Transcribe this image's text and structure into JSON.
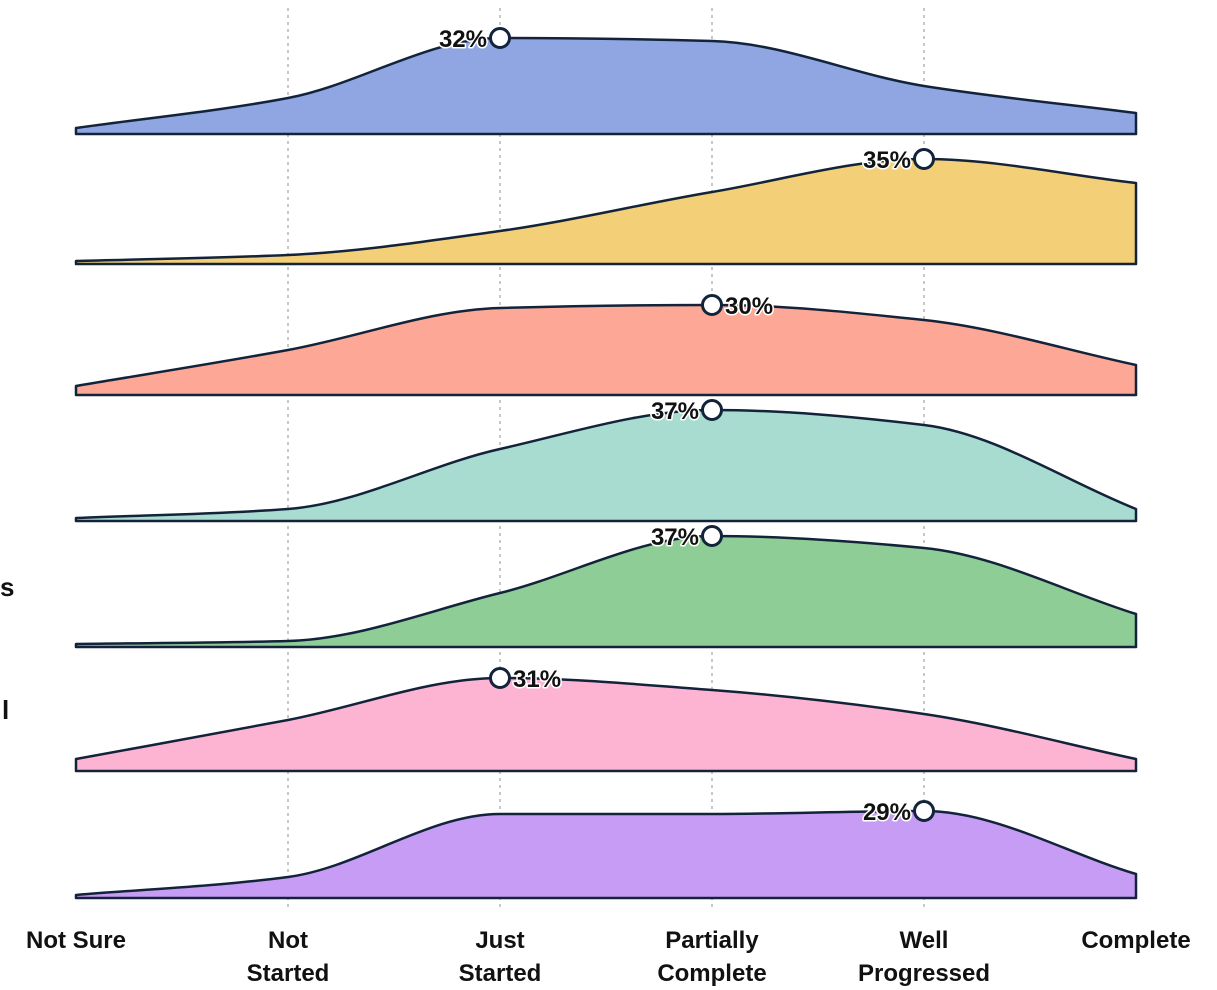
{
  "chart_data": {
    "type": "area",
    "subtype": "ridgeline",
    "categories": [
      "Not Sure",
      "Not Started",
      "Just Started",
      "Partially Complete",
      "Well Progressed",
      "Complete"
    ],
    "category_labels": [
      [
        "Not Sure"
      ],
      [
        "Not",
        "Started"
      ],
      [
        "Just",
        "Started"
      ],
      [
        "Partially",
        "Complete"
      ],
      [
        "Well",
        "Progressed"
      ],
      [
        "Complete"
      ]
    ],
    "series": [
      {
        "color": "#8fa6e2",
        "values": [
          2,
          12,
          32,
          31,
          16,
          7
        ],
        "peak_label": "32%",
        "peak_index": 2
      },
      {
        "color": "#f3cf78",
        "values": [
          1,
          3,
          11,
          24,
          35,
          27
        ],
        "peak_label": "35%",
        "peak_index": 4
      },
      {
        "color": "#fda796",
        "values": [
          3,
          15,
          29,
          30,
          25,
          10
        ],
        "peak_label": "30%",
        "peak_index": 3
      },
      {
        "color": "#a8dcd1",
        "values": [
          1,
          4,
          24,
          37,
          32,
          4
        ],
        "peak_label": "37%",
        "peak_index": 3
      },
      {
        "color": "#8ecd96",
        "values": [
          1,
          2,
          18,
          37,
          33,
          11
        ],
        "peak_label": "37%",
        "peak_index": 3
      },
      {
        "color": "#fdb4d3",
        "values": [
          4,
          17,
          31,
          27,
          19,
          4
        ],
        "peak_label": "31%",
        "peak_index": 2
      },
      {
        "color": "#c79cf4",
        "values": [
          1,
          7,
          28,
          28,
          29,
          8
        ],
        "peak_label": "29%",
        "peak_index": 4
      }
    ],
    "ylim": [
      0,
      40
    ],
    "grid": "vertical dotted at inner categories",
    "legend": "none"
  },
  "cut_off_labels": [
    "s",
    "l"
  ]
}
